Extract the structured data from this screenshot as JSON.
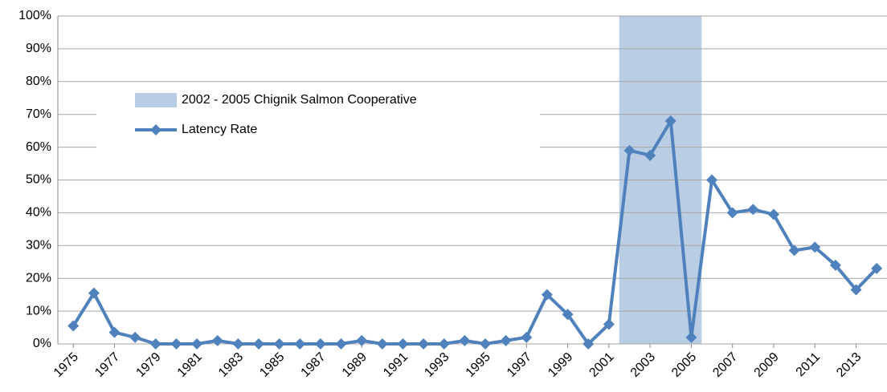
{
  "chart_data": {
    "type": "line",
    "x": [
      1975,
      1976,
      1977,
      1978,
      1979,
      1980,
      1981,
      1982,
      1983,
      1984,
      1985,
      1986,
      1987,
      1988,
      1989,
      1990,
      1991,
      1992,
      1993,
      1994,
      1995,
      1996,
      1997,
      1998,
      1999,
      2000,
      2001,
      2002,
      2003,
      2004,
      2005,
      2006,
      2007,
      2008,
      2009,
      2010,
      2011,
      2012,
      2013,
      2014
    ],
    "series": [
      {
        "name": "Latency Rate",
        "color": "#4f81bd",
        "values": [
          5.5,
          15.5,
          3.5,
          2,
          0,
          0,
          0,
          1,
          0,
          0,
          0,
          0,
          0,
          0,
          1,
          0,
          0,
          0,
          0,
          1,
          0,
          1,
          2,
          15,
          9,
          0,
          6,
          59,
          57.5,
          68,
          2,
          50,
          40,
          41,
          39.5,
          28.5,
          29.5,
          24,
          16.5,
          23
        ]
      }
    ],
    "shaded_span": {
      "name": "2002 - 2005 Chignik Salmon Cooperative",
      "color": "#b9cde5",
      "x": [
        2001.5,
        2005.5
      ]
    },
    "xlim": [
      1974.25,
      2014.5
    ],
    "xticks": [
      1975,
      1977,
      1979,
      1981,
      1983,
      1985,
      1987,
      1989,
      1991,
      1993,
      1995,
      1997,
      1999,
      2001,
      2003,
      2005,
      2007,
      2009,
      2011,
      2013
    ],
    "ylim": [
      0,
      100
    ],
    "yticks": [
      {
        "value": 0,
        "label": "0%"
      },
      {
        "value": 10,
        "label": "10%"
      },
      {
        "value": 20,
        "label": "20%"
      },
      {
        "value": 30,
        "label": "30%"
      },
      {
        "value": 40,
        "label": "40%"
      },
      {
        "value": 50,
        "label": "50%"
      },
      {
        "value": 60,
        "label": "60%"
      },
      {
        "value": 70,
        "label": "70%"
      },
      {
        "value": 80,
        "label": "80%"
      },
      {
        "value": 90,
        "label": "90%"
      },
      {
        "value": 100,
        "label": "100%"
      }
    ],
    "grid": true
  }
}
